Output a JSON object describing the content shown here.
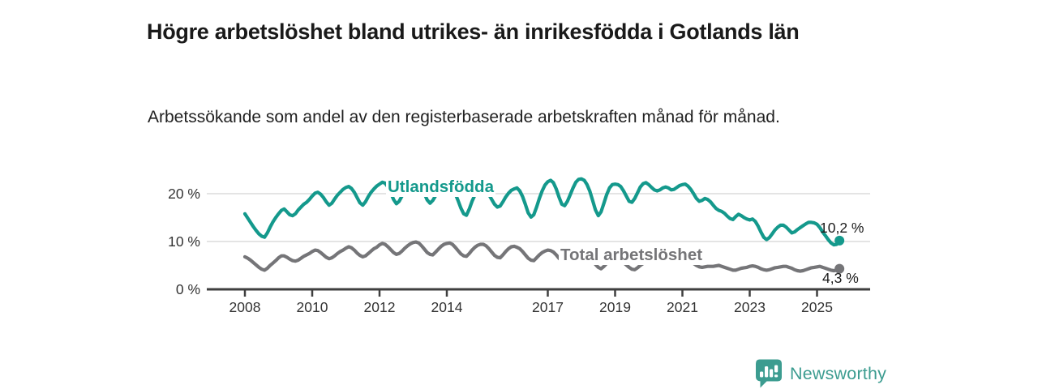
{
  "title": "Högre arbetslöshet bland utrikes- än inrikesfödda i Gotlands län",
  "subtitle": "Arbetssökande som andel av den registerbaserade arbetskraften månad för månad.",
  "branding": {
    "name": "Newsworthy",
    "logo_icon": "bar-chart-speech-bubble-icon",
    "color": "#3C9C90"
  },
  "colors": {
    "title_text": "#1a1a1a",
    "axis_text": "#333333",
    "gridline": "#dbdbdb",
    "axis_line": "#3f3f3f"
  },
  "chart_data": {
    "type": "line",
    "title": "Högre arbetslöshet bland utrikes- än inrikesfödda i Gotlands län",
    "subtitle": "Arbetssökande som andel av den registerbaserade arbetskraften månad för månad.",
    "x_unit": "month",
    "x_start": "2008-01",
    "x_end": "2025-09",
    "grid": "horizontal",
    "legend_position": "inline-labels",
    "ylim": [
      0,
      25
    ],
    "y_ticks": [
      {
        "value": 0,
        "label": "0 %"
      },
      {
        "value": 10,
        "label": "10 %"
      },
      {
        "value": 20,
        "label": "20 %"
      }
    ],
    "x_tick_years": [
      "2008",
      "2010",
      "2012",
      "2014",
      "2017",
      "2019",
      "2021",
      "2023",
      "2025"
    ],
    "series": [
      {
        "name": "Utlandsfödda",
        "color": "#14998C",
        "end_value": 10.2,
        "end_label": "10,2 %",
        "values": [
          15.8,
          14.9,
          14.0,
          13.1,
          12.3,
          11.6,
          11.1,
          10.9,
          11.8,
          13.0,
          14.1,
          15.0,
          15.8,
          16.5,
          16.8,
          16.2,
          15.6,
          15.4,
          15.8,
          16.6,
          17.2,
          17.8,
          18.2,
          18.8,
          19.5,
          20.1,
          20.3,
          19.9,
          19.2,
          18.3,
          17.6,
          18.0,
          18.9,
          19.7,
          20.3,
          20.9,
          21.3,
          21.5,
          21.1,
          20.3,
          19.2,
          18.1,
          17.6,
          18.3,
          19.4,
          20.3,
          21.0,
          21.6,
          22.0,
          22.4,
          22.2,
          21.4,
          20.2,
          18.8,
          17.9,
          18.4,
          19.5,
          20.5,
          21.2,
          21.6,
          21.9,
          22.2,
          22.0,
          21.2,
          20.0,
          18.7,
          18.0,
          18.6,
          19.6,
          20.5,
          21.1,
          21.4,
          21.2,
          21.5,
          21.0,
          20.0,
          18.6,
          17.0,
          15.8,
          15.5,
          16.8,
          18.4,
          19.7,
          20.5,
          20.8,
          21.0,
          20.6,
          19.8,
          18.8,
          17.8,
          17.2,
          17.4,
          18.3,
          19.3,
          20.1,
          20.7,
          21.0,
          21.2,
          20.6,
          19.4,
          17.8,
          16.0,
          15.1,
          15.6,
          17.2,
          19.0,
          20.6,
          21.8,
          22.5,
          22.8,
          22.3,
          21.0,
          19.3,
          17.8,
          17.5,
          18.4,
          19.8,
          21.2,
          22.4,
          23.0,
          23.1,
          22.8,
          21.9,
          20.5,
          18.6,
          16.6,
          15.4,
          16.2,
          18.0,
          19.8,
          21.2,
          21.9,
          22.0,
          21.9,
          21.5,
          20.6,
          19.5,
          18.4,
          18.2,
          19.0,
          20.2,
          21.4,
          22.1,
          22.3,
          21.9,
          21.3,
          20.8,
          20.6,
          20.8,
          21.2,
          21.4,
          21.2,
          20.8,
          20.9,
          21.3,
          21.7,
          21.9,
          22.0,
          21.6,
          20.9,
          20.0,
          19.0,
          18.4,
          18.6,
          19.0,
          18.8,
          18.3,
          17.6,
          16.9,
          16.5,
          16.3,
          15.9,
          15.3,
          14.8,
          14.6,
          15.2,
          15.7,
          15.4,
          15.0,
          14.7,
          14.5,
          14.7,
          14.2,
          13.2,
          12.0,
          10.9,
          10.4,
          10.8,
          11.6,
          12.4,
          13.0,
          13.4,
          13.4,
          13.0,
          12.4,
          11.8,
          12.0,
          12.5,
          12.9,
          13.3,
          13.7,
          14.0,
          14.0,
          13.9,
          13.6,
          12.9,
          12.0,
          11.2,
          10.4,
          9.7,
          9.3,
          9.4,
          10.2
        ]
      },
      {
        "name": "Total arbetslöshet",
        "color": "#757578",
        "end_value": 4.3,
        "end_label": "4,3 %",
        "values": [
          6.8,
          6.5,
          6.1,
          5.6,
          5.1,
          4.6,
          4.2,
          4.0,
          4.4,
          5.0,
          5.5,
          6.0,
          6.6,
          7.0,
          7.0,
          6.7,
          6.3,
          6.0,
          5.9,
          6.1,
          6.5,
          6.9,
          7.2,
          7.5,
          7.9,
          8.2,
          8.1,
          7.7,
          7.2,
          6.7,
          6.4,
          6.6,
          7.0,
          7.5,
          7.9,
          8.2,
          8.6,
          8.9,
          8.7,
          8.2,
          7.6,
          7.1,
          6.8,
          7.0,
          7.5,
          8.0,
          8.5,
          8.8,
          9.3,
          9.6,
          9.4,
          8.9,
          8.3,
          7.7,
          7.3,
          7.5,
          8.0,
          8.6,
          9.1,
          9.5,
          9.8,
          9.9,
          9.7,
          9.1,
          8.4,
          7.7,
          7.3,
          7.2,
          7.8,
          8.4,
          9.0,
          9.4,
          9.6,
          9.7,
          9.4,
          8.8,
          8.1,
          7.4,
          7.0,
          6.9,
          7.5,
          8.2,
          8.8,
          9.2,
          9.4,
          9.4,
          9.1,
          8.5,
          7.8,
          7.1,
          6.7,
          6.6,
          7.2,
          7.9,
          8.5,
          8.9,
          9.0,
          8.8,
          8.5,
          7.9,
          7.2,
          6.5,
          6.1,
          6.0,
          6.6,
          7.2,
          7.7,
          8.0,
          8.2,
          8.1,
          7.8,
          7.2,
          6.5,
          5.9,
          5.6,
          5.7,
          6.2,
          6.7,
          7.1,
          7.4,
          7.5,
          7.4,
          7.1,
          6.5,
          5.9,
          5.2,
          4.6,
          4.3,
          4.8,
          5.4,
          5.9,
          6.3,
          6.5,
          6.4,
          6.1,
          5.6,
          5.1,
          4.6,
          4.2,
          4.1,
          4.5,
          5.0,
          5.4,
          5.8,
          6.0,
          6.2,
          6.6,
          7.0,
          7.2,
          7.1,
          6.9,
          6.7,
          6.6,
          6.5,
          6.4,
          6.4,
          6.4,
          6.3,
          6.1,
          5.8,
          5.4,
          5.0,
          4.7,
          4.6,
          4.7,
          4.8,
          4.8,
          4.8,
          4.9,
          5.0,
          4.8,
          4.6,
          4.4,
          4.2,
          4.0,
          4.0,
          4.2,
          4.4,
          4.5,
          4.6,
          4.8,
          4.9,
          4.8,
          4.6,
          4.3,
          4.1,
          4.0,
          4.1,
          4.3,
          4.5,
          4.6,
          4.7,
          4.8,
          4.8,
          4.6,
          4.4,
          4.1,
          3.9,
          3.8,
          3.9,
          4.1,
          4.3,
          4.5,
          4.6,
          4.7,
          4.8,
          4.6,
          4.4,
          4.2,
          4.0,
          3.9,
          4.0,
          4.3
        ]
      }
    ]
  }
}
